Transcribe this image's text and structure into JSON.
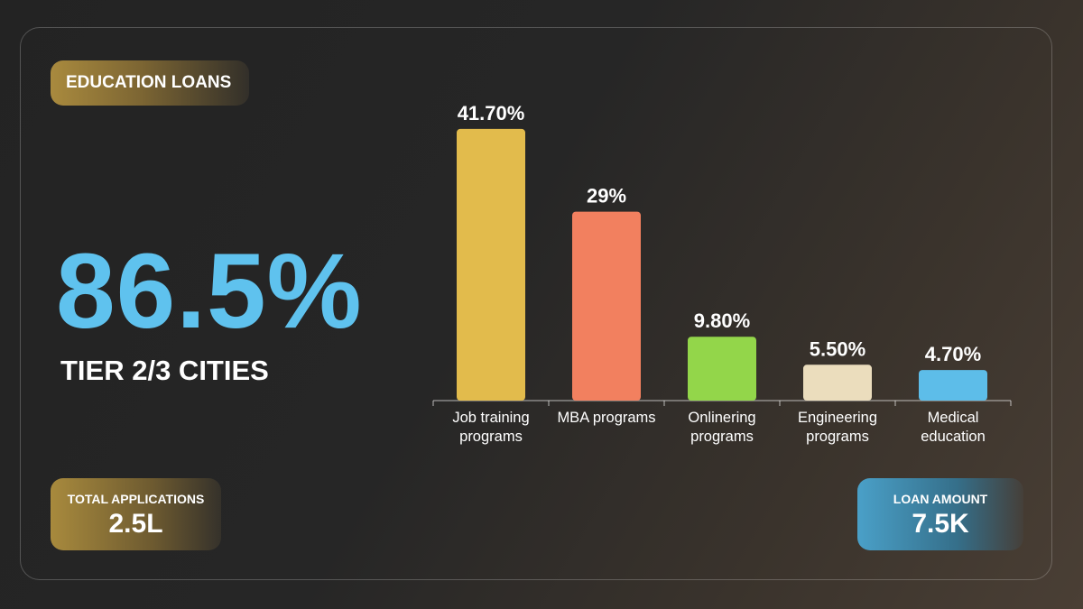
{
  "badge": "EDUCATION LOANS",
  "headline": {
    "value": "86.5%",
    "caption": "TIER 2/3 CITIES"
  },
  "stats": [
    {
      "label": "TOTAL APPLICATIONS",
      "value": "2.5L"
    },
    {
      "label": "LOAN AMOUNT",
      "value": "7.5K"
    }
  ],
  "chart_data": {
    "type": "bar",
    "categories": [
      "Job training programs",
      "MBA programs",
      "Onlinering programs",
      "Engineering programs",
      "Medical education"
    ],
    "values": [
      41.7,
      29,
      9.8,
      5.5,
      4.7
    ],
    "value_labels": [
      "41.70%",
      "29%",
      "9.80%",
      "5.50%",
      "4.70%"
    ],
    "colors": [
      "#e2bb4c",
      "#f2805f",
      "#93d64a",
      "#ebddbd",
      "#5dbde9"
    ]
  }
}
